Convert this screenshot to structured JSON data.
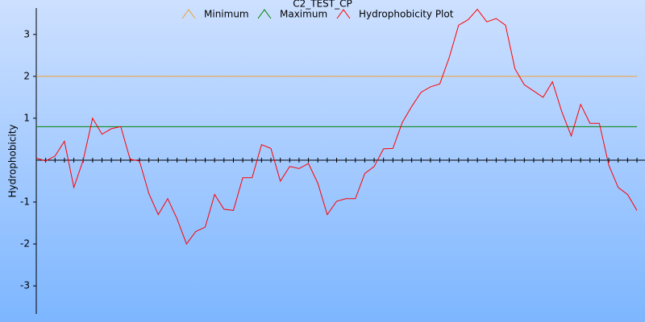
{
  "chart_data": {
    "type": "line",
    "title": "C2_TEST_CP",
    "ylabel": "Hydrophobicity",
    "ylim": [
      -3.67,
      3.63
    ],
    "yticks": [
      -3,
      -2,
      -1,
      1,
      2,
      3
    ],
    "series": [
      {
        "name": "Minimum",
        "color": "#f0a030",
        "value": 2
      },
      {
        "name": "Maximum",
        "color": "#008000",
        "value": 0.8
      },
      {
        "name": "Hydrophobicity Plot",
        "color": "#ff0000",
        "values": [
          0.05,
          -0.02,
          0.1,
          0.45,
          -0.65,
          0,
          1,
          0.62,
          0.75,
          0.8,
          0.02,
          -0.02,
          -0.8,
          -1.3,
          -0.92,
          -1.4,
          -2,
          -1.7,
          -1.6,
          -0.82,
          -1.17,
          -1.2,
          -0.42,
          -0.42,
          0.37,
          0.28,
          -0.5,
          -0.15,
          -0.2,
          -0.08,
          -0.55,
          -1.3,
          -0.98,
          -0.92,
          -0.92,
          -0.32,
          -0.15,
          0.27,
          0.28,
          0.9,
          1.28,
          1.62,
          1.75,
          1.82,
          2.45,
          3.22,
          3.35,
          3.6,
          3.3,
          3.38,
          3.22,
          2.18,
          1.8,
          1.65,
          1.5,
          1.87,
          1.15,
          0.58,
          1.33,
          0.88,
          0.88,
          -0.12,
          -0.65,
          -0.82,
          -1.2
        ]
      }
    ]
  }
}
